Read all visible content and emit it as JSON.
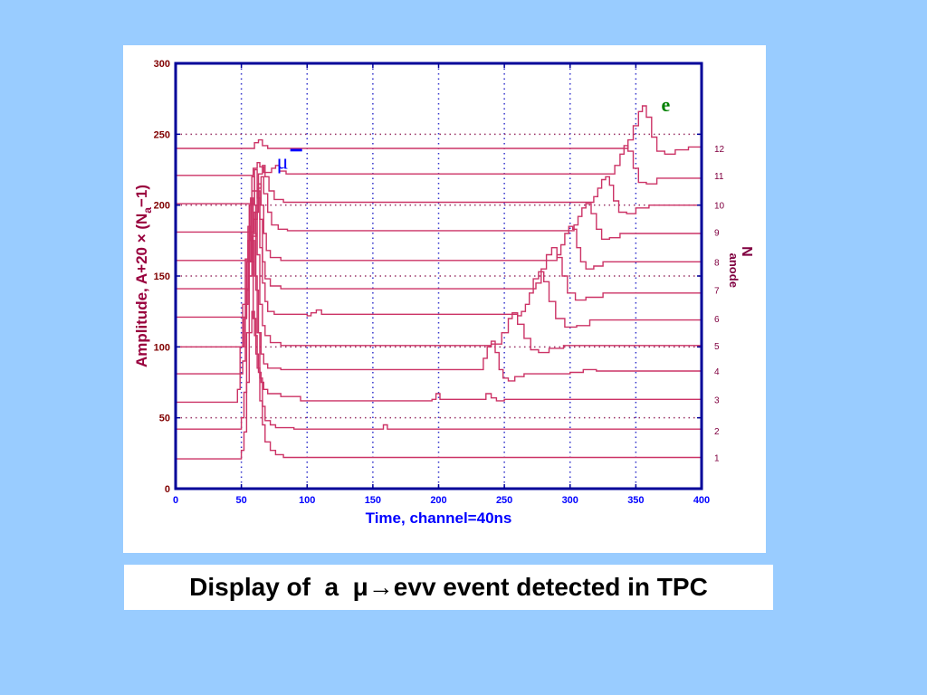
{
  "caption": "Display of  a  μ→evv event detected in TPC",
  "colors": {
    "page_background": "#99ccff",
    "axis": "#000099",
    "y_tick_labels": "#800000",
    "x_tick_labels": "#0000ff",
    "trace": "#cc3366",
    "muon_label": "#0000ff",
    "electron_label": "#008000",
    "ylabel": "#99003d",
    "right_label": "#800040",
    "xlabel": "#0000ff"
  },
  "chart_data": {
    "type": "line",
    "title": "",
    "xlabel": "Time, channel=40ns",
    "ylabel_parts": {
      "main": "Amplitude, A+20 ",
      "times": "×",
      "paren": " (N",
      "sub": "a",
      "tail": "−1)"
    },
    "right_label": {
      "main": "N",
      "sub": "anode"
    },
    "xlim": [
      0,
      400
    ],
    "ylim": [
      0,
      300
    ],
    "x_ticks": [
      0,
      50,
      100,
      150,
      200,
      250,
      300,
      350,
      400
    ],
    "y_ticks": [
      0,
      50,
      100,
      150,
      200,
      250,
      300
    ],
    "grid": "dotted",
    "annotations": [
      {
        "text": "μ",
        "mark": "−",
        "x": 70,
        "y": 237,
        "role": "muon"
      },
      {
        "text": "e",
        "x": 357,
        "y": 279,
        "role": "electron"
      }
    ],
    "series": [
      {
        "label": "1",
        "points": [
          [
            0,
            21
          ],
          [
            48,
            21
          ],
          [
            50,
            27
          ],
          [
            52,
            40
          ],
          [
            54,
            75
          ],
          [
            56,
            110
          ],
          [
            58,
            125
          ],
          [
            60,
            108
          ],
          [
            62,
            85
          ],
          [
            64,
            62
          ],
          [
            66,
            45
          ],
          [
            68,
            33
          ],
          [
            72,
            27
          ],
          [
            76,
            24
          ],
          [
            82,
            22
          ],
          [
            90,
            22
          ],
          [
            400,
            22
          ]
        ]
      },
      {
        "label": "2",
        "points": [
          [
            0,
            42
          ],
          [
            48,
            42
          ],
          [
            50,
            50
          ],
          [
            52,
            68
          ],
          [
            54,
            110
          ],
          [
            56,
            150
          ],
          [
            58,
            175
          ],
          [
            60,
            150
          ],
          [
            62,
            110
          ],
          [
            64,
            78
          ],
          [
            66,
            58
          ],
          [
            68,
            48
          ],
          [
            72,
            45
          ],
          [
            76,
            43
          ],
          [
            90,
            42
          ],
          [
            155,
            42
          ],
          [
            158,
            45
          ],
          [
            161,
            42
          ],
          [
            400,
            41
          ]
        ]
      },
      {
        "label": "3",
        "points": [
          [
            0,
            61
          ],
          [
            45,
            61
          ],
          [
            47,
            70
          ],
          [
            49,
            100
          ],
          [
            51,
            130
          ],
          [
            53,
            162
          ],
          [
            55,
            185
          ],
          [
            57,
            160
          ],
          [
            59,
            120
          ],
          [
            61,
            95
          ],
          [
            63,
            82
          ],
          [
            65,
            75
          ],
          [
            67,
            70
          ],
          [
            70,
            67
          ],
          [
            80,
            65
          ],
          [
            95,
            62
          ],
          [
            195,
            63
          ],
          [
            198,
            67
          ],
          [
            201,
            63
          ],
          [
            232,
            63
          ],
          [
            236,
            67
          ],
          [
            240,
            64
          ],
          [
            244,
            62
          ],
          [
            250,
            63
          ],
          [
            400,
            63
          ]
        ]
      },
      {
        "label": "4",
        "points": [
          [
            0,
            81
          ],
          [
            49,
            81
          ],
          [
            51,
            90
          ],
          [
            53,
            130
          ],
          [
            55,
            175
          ],
          [
            57,
            205
          ],
          [
            59,
            180
          ],
          [
            61,
            140
          ],
          [
            63,
            110
          ],
          [
            65,
            95
          ],
          [
            67,
            88
          ],
          [
            70,
            85
          ],
          [
            80,
            84
          ],
          [
            230,
            84
          ],
          [
            234,
            92
          ],
          [
            237,
            100
          ],
          [
            240,
            104
          ],
          [
            243,
            96
          ],
          [
            246,
            84
          ],
          [
            249,
            78
          ],
          [
            253,
            76
          ],
          [
            258,
            79
          ],
          [
            265,
            81
          ],
          [
            300,
            82
          ],
          [
            310,
            84
          ],
          [
            320,
            83
          ],
          [
            400,
            83
          ]
        ]
      },
      {
        "label": "5",
        "points": [
          [
            0,
            100
          ],
          [
            50,
            100
          ],
          [
            52,
            120
          ],
          [
            54,
            160
          ],
          [
            56,
            200
          ],
          [
            58,
            220
          ],
          [
            60,
            200
          ],
          [
            62,
            165
          ],
          [
            64,
            130
          ],
          [
            66,
            115
          ],
          [
            68,
            108
          ],
          [
            72,
            103
          ],
          [
            80,
            101
          ],
          [
            230,
            101
          ],
          [
            240,
            102
          ],
          [
            248,
            110
          ],
          [
            253,
            120
          ],
          [
            256,
            124
          ],
          [
            260,
            116
          ],
          [
            265,
            106
          ],
          [
            270,
            98
          ],
          [
            276,
            96
          ],
          [
            284,
            99
          ],
          [
            295,
            101
          ],
          [
            400,
            101
          ]
        ]
      },
      {
        "label": "6",
        "points": [
          [
            0,
            121
          ],
          [
            52,
            121
          ],
          [
            54,
            140
          ],
          [
            56,
            175
          ],
          [
            58,
            210
          ],
          [
            60,
            225
          ],
          [
            62,
            205
          ],
          [
            64,
            170
          ],
          [
            66,
            145
          ],
          [
            68,
            132
          ],
          [
            70,
            125
          ],
          [
            75,
            123
          ],
          [
            100,
            122
          ],
          [
            103,
            124
          ],
          [
            107,
            126
          ],
          [
            111,
            123
          ],
          [
            260,
            122
          ],
          [
            263,
            125
          ],
          [
            266,
            130
          ],
          [
            269,
            138
          ],
          [
            272,
            148
          ],
          [
            276,
            153
          ],
          [
            280,
            146
          ],
          [
            284,
            132
          ],
          [
            289,
            120
          ],
          [
            296,
            114
          ],
          [
            305,
            115
          ],
          [
            315,
            119
          ],
          [
            400,
            120
          ]
        ]
      },
      {
        "label": "7",
        "points": [
          [
            0,
            141
          ],
          [
            53,
            141
          ],
          [
            56,
            160
          ],
          [
            59,
            190
          ],
          [
            62,
            210
          ],
          [
            64,
            190
          ],
          [
            66,
            160
          ],
          [
            68,
            148
          ],
          [
            72,
            143
          ],
          [
            80,
            141
          ],
          [
            270,
            141
          ],
          [
            274,
            145
          ],
          [
            278,
            155
          ],
          [
            282,
            165
          ],
          [
            286,
            170
          ],
          [
            290,
            163
          ],
          [
            294,
            150
          ],
          [
            298,
            138
          ],
          [
            304,
            133
          ],
          [
            312,
            135
          ],
          [
            325,
            138
          ],
          [
            400,
            140
          ]
        ]
      },
      {
        "label": "8",
        "points": [
          [
            0,
            161
          ],
          [
            55,
            161
          ],
          [
            58,
            178
          ],
          [
            61,
            200
          ],
          [
            63,
            215
          ],
          [
            65,
            200
          ],
          [
            67,
            180
          ],
          [
            69,
            168
          ],
          [
            72,
            163
          ],
          [
            80,
            161
          ],
          [
            286,
            161
          ],
          [
            290,
            165
          ],
          [
            293,
            172
          ],
          [
            296,
            180
          ],
          [
            299,
            185
          ],
          [
            302,
            183
          ],
          [
            305,
            170
          ],
          [
            308,
            160
          ],
          [
            312,
            155
          ],
          [
            318,
            157
          ],
          [
            325,
            160
          ],
          [
            400,
            160
          ]
        ]
      },
      {
        "label": "9",
        "points": [
          [
            0,
            181
          ],
          [
            57,
            181
          ],
          [
            60,
            195
          ],
          [
            63,
            212
          ],
          [
            65,
            220
          ],
          [
            67,
            208
          ],
          [
            70,
            195
          ],
          [
            73,
            186
          ],
          [
            78,
            183
          ],
          [
            85,
            182
          ],
          [
            300,
            182
          ],
          [
            303,
            186
          ],
          [
            306,
            192
          ],
          [
            309,
            198
          ],
          [
            312,
            201
          ],
          [
            316,
            194
          ],
          [
            320,
            183
          ],
          [
            324,
            176
          ],
          [
            330,
            177
          ],
          [
            338,
            180
          ],
          [
            400,
            181
          ]
        ]
      },
      {
        "label": "10",
        "points": [
          [
            0,
            201
          ],
          [
            57,
            201
          ],
          [
            60,
            210
          ],
          [
            63,
            222
          ],
          [
            66,
            228
          ],
          [
            68,
            220
          ],
          [
            71,
            210
          ],
          [
            75,
            204
          ],
          [
            82,
            202
          ],
          [
            315,
            202
          ],
          [
            318,
            206
          ],
          [
            321,
            212
          ],
          [
            324,
            218
          ],
          [
            327,
            220
          ],
          [
            330,
            214
          ],
          [
            333,
            203
          ],
          [
            337,
            195
          ],
          [
            343,
            194
          ],
          [
            350,
            198
          ],
          [
            360,
            200
          ],
          [
            400,
            200
          ]
        ]
      },
      {
        "label": "11",
        "points": [
          [
            0,
            221
          ],
          [
            56,
            221
          ],
          [
            59,
            226
          ],
          [
            62,
            230
          ],
          [
            64,
            227
          ],
          [
            67,
            223
          ],
          [
            70,
            223
          ],
          [
            73,
            226
          ],
          [
            76,
            228
          ],
          [
            79,
            224
          ],
          [
            84,
            222
          ],
          [
            330,
            222
          ],
          [
            334,
            228
          ],
          [
            338,
            236
          ],
          [
            341,
            242
          ],
          [
            344,
            238
          ],
          [
            348,
            226
          ],
          [
            352,
            216
          ],
          [
            358,
            215
          ],
          [
            366,
            219
          ],
          [
            400,
            221
          ]
        ]
      },
      {
        "label": "12",
        "points": [
          [
            0,
            240
          ],
          [
            56,
            240
          ],
          [
            60,
            244
          ],
          [
            63,
            246
          ],
          [
            66,
            242
          ],
          [
            70,
            240
          ],
          [
            340,
            240
          ],
          [
            344,
            246
          ],
          [
            348,
            256
          ],
          [
            352,
            266
          ],
          [
            355,
            270
          ],
          [
            358,
            262
          ],
          [
            362,
            248
          ],
          [
            366,
            238
          ],
          [
            372,
            236
          ],
          [
            380,
            239
          ],
          [
            390,
            241
          ],
          [
            400,
            240
          ]
        ]
      }
    ]
  }
}
